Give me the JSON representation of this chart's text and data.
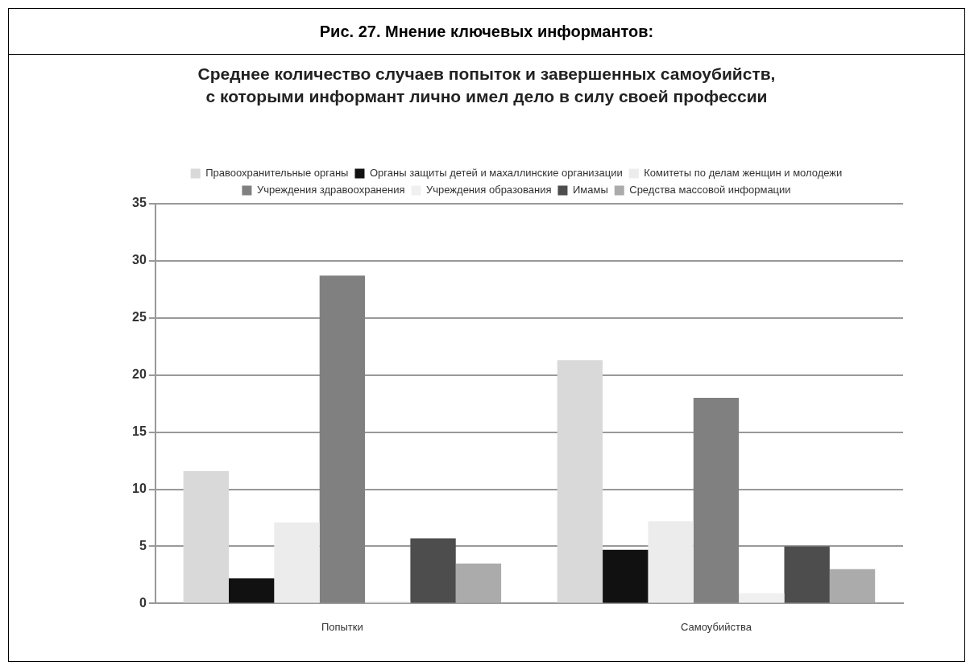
{
  "chart_data": {
    "type": "bar",
    "title": "Рис. 27.  Мнение ключевых информантов:",
    "subtitle": "Среднее количество случаев попыток и завершенных самоубийств, с которыми информант лично имел дело в силу своей профессии",
    "categories": [
      "Попытки",
      "Самоубийства"
    ],
    "series": [
      {
        "name": "Правоохранительные органы",
        "color": "#d9d9d9",
        "values": [
          11.6,
          21.3
        ]
      },
      {
        "name": "Органы защиты детей и махаллинские организации",
        "color": "#111111",
        "values": [
          2.2,
          4.7
        ]
      },
      {
        "name": "Комитеты по делам женщин и молодежи",
        "color": "#ececec",
        "values": [
          7.1,
          7.2
        ]
      },
      {
        "name": "Учреждения здравоохранения",
        "color": "#808080",
        "values": [
          28.7,
          18.0
        ]
      },
      {
        "name": "Учреждения образования",
        "color": "#f0f0f0",
        "values": [
          0.2,
          0.9
        ]
      },
      {
        "name": "Имамы",
        "color": "#4d4d4d",
        "values": [
          5.7,
          5.0
        ]
      },
      {
        "name": "Средства массовой информации",
        "color": "#ababab",
        "values": [
          3.5,
          3.0
        ]
      }
    ],
    "ylim": [
      0,
      35
    ],
    "yticks": [
      0,
      5,
      10,
      15,
      20,
      25,
      30,
      35
    ],
    "grid": "y",
    "legend": "top"
  }
}
